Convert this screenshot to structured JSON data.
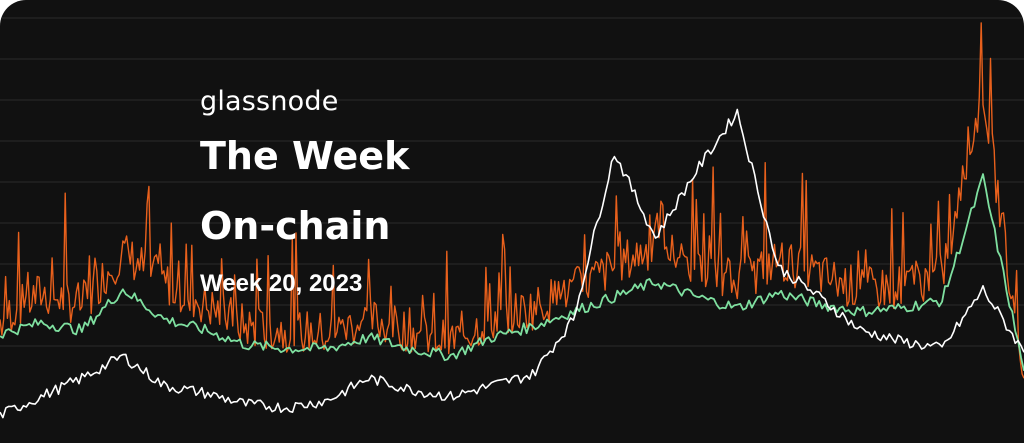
{
  "banner": {
    "brand": "glassnode",
    "title_line1": "The Week",
    "title_line2": "On-chain",
    "week_label": "Week 20, 2023"
  },
  "colors": {
    "background": "#111111",
    "gridline": "#2a2a2a",
    "price_line": "#ffffff",
    "metric_raw": "#e8601c",
    "metric_smoothed": "#7fe0a0"
  },
  "chart_data": {
    "type": "line",
    "grid": true,
    "axes_visible": false,
    "legend": "none",
    "x": [
      0,
      4,
      8,
      12,
      16,
      20,
      24,
      28,
      32,
      36,
      40,
      44,
      48,
      52,
      56,
      60,
      64,
      68,
      72,
      76,
      80,
      84,
      88,
      92,
      96,
      100
    ],
    "ylim": [
      0,
      100
    ],
    "series": [
      {
        "role": "price",
        "color": "#ffffff",
        "values": [
          4,
          9,
          14,
          20,
          12,
          10,
          7,
          6,
          8,
          14,
          11,
          9,
          12,
          15,
          30,
          75,
          52,
          70,
          86,
          44,
          36,
          27,
          24,
          22,
          38,
          21
        ]
      },
      {
        "role": "metric-raw",
        "color": "#e8601c",
        "values": [
          30,
          37,
          34,
          48,
          40,
          34,
          28,
          27,
          26,
          30,
          27,
          24,
          30,
          33,
          38,
          44,
          50,
          44,
          40,
          46,
          42,
          38,
          39,
          42,
          92,
          14
        ]
      },
      {
        "role": "metric-smoothed",
        "color": "#7fe0a0",
        "values": [
          26,
          29,
          27,
          38,
          30,
          27,
          23,
          22,
          22,
          25,
          22,
          20,
          25,
          28,
          32,
          36,
          40,
          36,
          33,
          37,
          34,
          32,
          33,
          35,
          68,
          16
        ]
      }
    ]
  }
}
